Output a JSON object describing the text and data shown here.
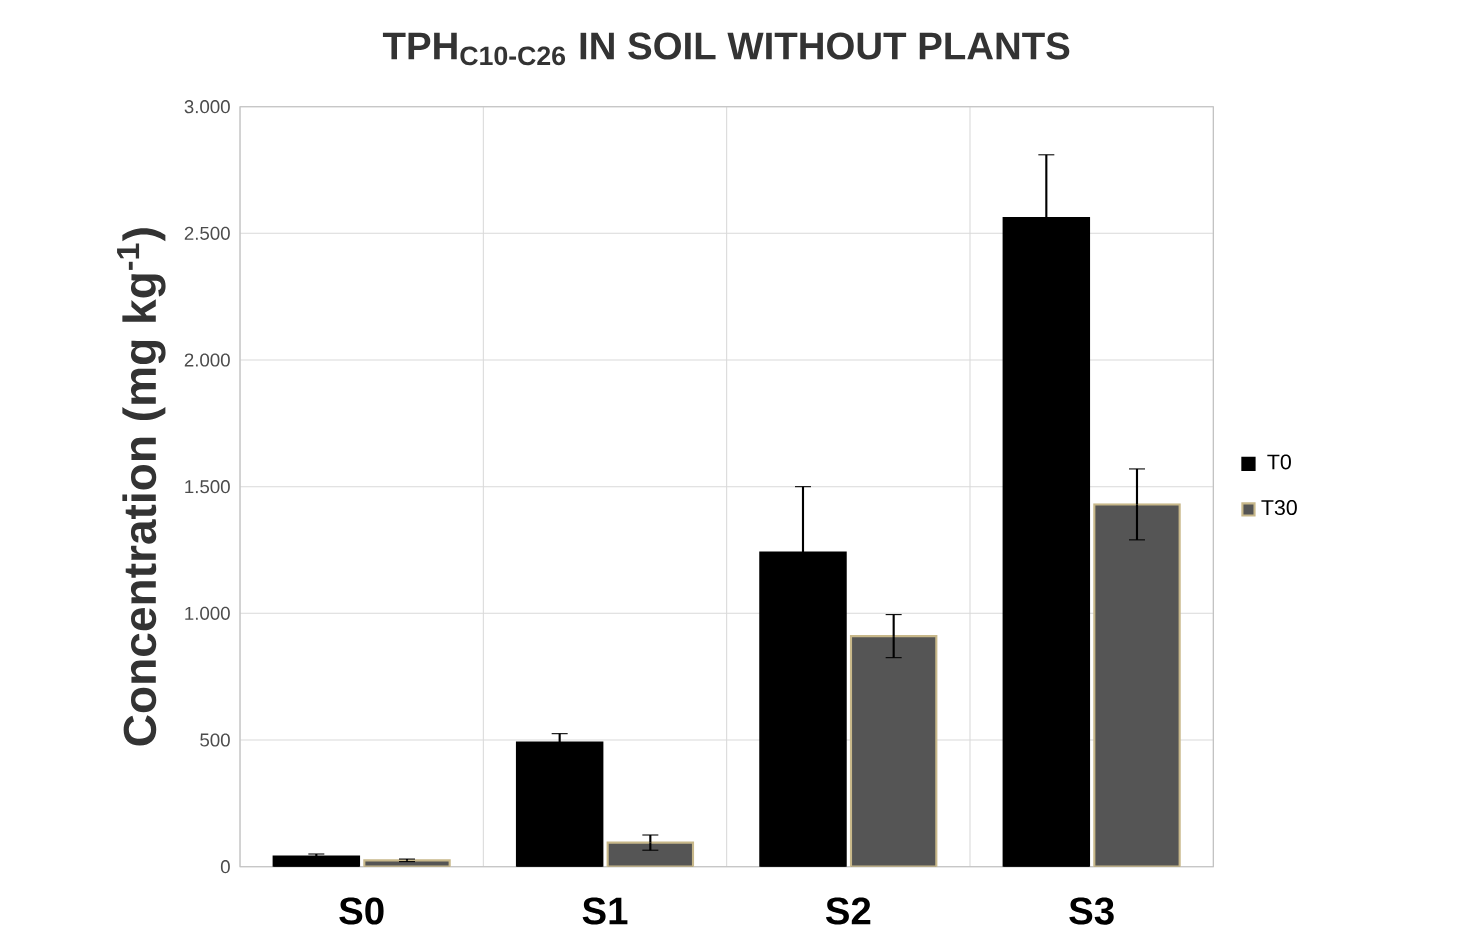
{
  "chart_data": {
    "type": "bar",
    "title": "TPH$_{C10-C26}$ IN SOIL WITHOUT PLANTS",
    "ylabel": "Concentration (mg kg$^{-1}$)",
    "categories": [
      "S0",
      "S1",
      "S2",
      "S3"
    ],
    "series": [
      {
        "name": "T0",
        "color": "#000000",
        "values": [
          40,
          490,
          1240,
          2560
        ],
        "errors": [
          10,
          35,
          260,
          250
        ]
      },
      {
        "name": "T30",
        "color": "#555555",
        "values": [
          25,
          95,
          910,
          1430
        ],
        "errors": [
          5,
          30,
          85,
          140
        ]
      }
    ],
    "ylim": [
      0,
      3000
    ],
    "yticks": [
      {
        "value": 0,
        "label": "0"
      },
      {
        "value": 500,
        "label": "500"
      },
      {
        "value": 1000,
        "label": "1.000"
      },
      {
        "value": 1500,
        "label": "1.500"
      },
      {
        "value": 2000,
        "label": "2.000"
      },
      {
        "value": 2500,
        "label": "2.500"
      },
      {
        "value": 3000,
        "label": "3.000"
      }
    ],
    "grid": true,
    "legend": "right"
  }
}
